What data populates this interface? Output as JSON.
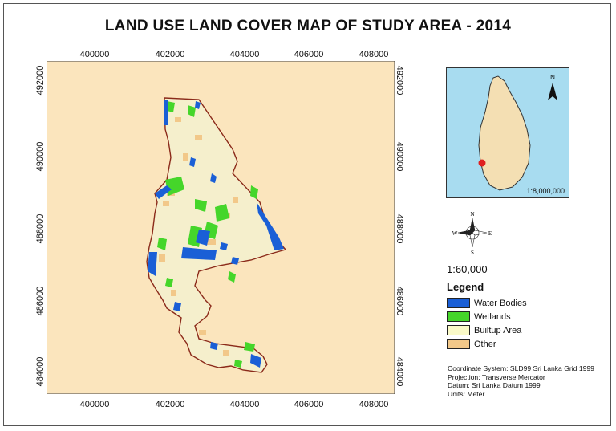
{
  "title": "LAND USE LAND COVER MAP OF STUDY AREA - 2014",
  "x_ticks": [
    "400000",
    "402000",
    "404000",
    "406000",
    "408000"
  ],
  "y_ticks": [
    "492000",
    "490000",
    "488000",
    "486000",
    "484000"
  ],
  "inset": {
    "scale_label": "1:8,000,000",
    "north_label": "N",
    "marker_color": "#e02020"
  },
  "compass": {
    "n": "N",
    "s": "S",
    "e": "E",
    "w": "W"
  },
  "scale_text": "1:60,000",
  "legend": {
    "title": "Legend",
    "items": [
      {
        "label": "Water Bodies",
        "color": "#1a5fd6"
      },
      {
        "label": "Wetlands",
        "color": "#45d62a"
      },
      {
        "label": "Builtup Area",
        "color": "#fafac8"
      },
      {
        "label": "Other",
        "color": "#f2c889"
      }
    ]
  },
  "notes": [
    "Coordinate System: SLD99 Sri Lanka Grid 1999",
    "Projection: Transverse Mercator",
    "Datum: Sri Lanka Datum 1999",
    "Units: Meter"
  ],
  "colors": {
    "background": "#fbe5bd",
    "boundary": "#8b2a1a",
    "builtup": "#f5efcc"
  }
}
